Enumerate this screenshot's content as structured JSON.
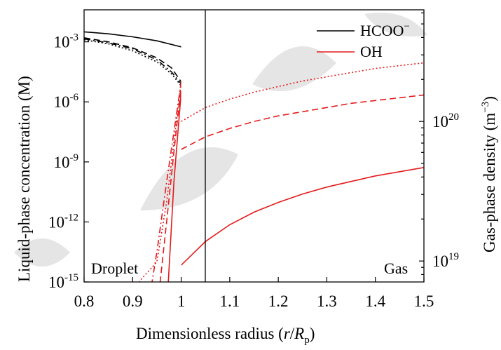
{
  "chart_data": {
    "type": "line",
    "xlabel": "Dimensionless radius (",
    "xlabel_r": "r",
    "xlabel_slash": "/",
    "xlabel_R": "R",
    "xlabel_sub": "p",
    "xlabel_close": ")",
    "ylabel_left": "Liquid-phase concentration (M)",
    "ylabel_right": "Gas-phase density (m",
    "ylabel_right_exp": "−3",
    "ylabel_right_close": ")",
    "xlim": [
      0.8,
      1.5
    ],
    "x_ticks": [
      "0.8",
      "0.9",
      "1",
      "1.1",
      "1.2",
      "1.3",
      "1.4",
      "1.5"
    ],
    "left_scale": "log",
    "left_ylim_exp": [
      -15,
      -1.4
    ],
    "left_ticks": [
      {
        "base": "10",
        "exp": "-3"
      },
      {
        "base": "10",
        "exp": "-6"
      },
      {
        "base": "10",
        "exp": "-9"
      },
      {
        "base": "10",
        "exp": "-12"
      },
      {
        "base": "10",
        "exp": "-15"
      }
    ],
    "right_scale": "log",
    "right_ylim_exp": [
      18.85,
      20.8
    ],
    "right_ticks": [
      {
        "base": "10",
        "exp": "20"
      },
      {
        "base": "10",
        "exp": "19"
      }
    ],
    "region_labels": {
      "left": "Droplet",
      "right": "Gas"
    },
    "boundary_x": 1.0,
    "legend": {
      "placement": "top-right",
      "entries": [
        {
          "label": "HCOO",
          "sup": "−",
          "color": "#000000"
        },
        {
          "label": "OH",
          "sup": "",
          "color": "#e41a1c"
        }
      ]
    },
    "series_liquid": [
      {
        "species": "HCOO−",
        "style": "solid",
        "color": "#000000",
        "x": [
          0.8,
          0.85,
          0.9,
          0.95,
          1.0
        ],
        "y_exp": [
          -2.5,
          -2.6,
          -2.75,
          -2.95,
          -3.25
        ]
      },
      {
        "species": "HCOO−",
        "style": "dashed",
        "color": "#000000",
        "x": [
          0.8,
          0.85,
          0.9,
          0.95,
          0.98,
          1.0
        ],
        "y_exp": [
          -2.8,
          -3.0,
          -3.3,
          -3.8,
          -4.3,
          -5.0
        ]
      },
      {
        "species": "HCOO−",
        "style": "dotted",
        "color": "#000000",
        "x": [
          0.8,
          0.85,
          0.9,
          0.95,
          0.98,
          1.0
        ],
        "y_exp": [
          -2.9,
          -3.1,
          -3.45,
          -4.0,
          -4.6,
          -5.2
        ]
      },
      {
        "species": "HCOO−",
        "style": "dashdot",
        "color": "#000000",
        "x": [
          0.8,
          0.85,
          0.9,
          0.95,
          0.98,
          1.0
        ],
        "y_exp": [
          -2.85,
          -3.05,
          -3.35,
          -3.9,
          -4.5,
          -5.1
        ]
      },
      {
        "species": "OH",
        "style": "solid",
        "color": "#e41a1c",
        "x": [
          0.97,
          0.985,
          1.0
        ],
        "y_exp": [
          -16.5,
          -10.0,
          -5.5
        ]
      },
      {
        "species": "OH",
        "style": "dashed",
        "color": "#e41a1c",
        "x": [
          0.95,
          0.97,
          0.985,
          1.0
        ],
        "y_exp": [
          -16.5,
          -12.0,
          -8.5,
          -5.2
        ]
      },
      {
        "species": "OH",
        "style": "dashdot",
        "color": "#e41a1c",
        "x": [
          0.93,
          0.95,
          0.97,
          0.985,
          1.0
        ],
        "y_exp": [
          -16.5,
          -13.5,
          -10.0,
          -7.5,
          -5.0
        ]
      },
      {
        "species": "OH",
        "style": "dotted",
        "color": "#e41a1c",
        "x": [
          0.89,
          0.92,
          0.95,
          0.97,
          0.985,
          1.0
        ],
        "y_exp": [
          -15.7,
          -14.8,
          -14.0,
          -11.0,
          -8.0,
          -5.0
        ]
      }
    ],
    "series_gas": [
      {
        "species": "OH",
        "style": "solid",
        "color": "#e41a1c",
        "x": [
          1.0,
          1.05,
          1.1,
          1.15,
          1.2,
          1.25,
          1.3,
          1.35,
          1.4,
          1.45,
          1.5
        ],
        "y_exp": [
          18.97,
          19.14,
          19.26,
          19.35,
          19.42,
          19.48,
          19.53,
          19.57,
          19.61,
          19.64,
          19.67
        ]
      },
      {
        "species": "OH",
        "style": "dashed",
        "color": "#e41a1c",
        "x": [
          1.0,
          1.05,
          1.1,
          1.15,
          1.2,
          1.25,
          1.3,
          1.35,
          1.4,
          1.45,
          1.5
        ],
        "y_exp": [
          19.8,
          19.89,
          19.95,
          20.0,
          20.04,
          20.07,
          20.1,
          20.13,
          20.15,
          20.17,
          20.19
        ]
      },
      {
        "species": "OH",
        "style": "dotted",
        "color": "#e41a1c",
        "x": [
          1.0,
          1.05,
          1.1,
          1.15,
          1.2,
          1.25,
          1.3,
          1.35,
          1.4,
          1.45,
          1.5
        ],
        "y_exp": [
          20.0,
          20.1,
          20.16,
          20.21,
          20.25,
          20.29,
          20.32,
          20.35,
          20.38,
          20.4,
          20.42
        ]
      }
    ]
  }
}
